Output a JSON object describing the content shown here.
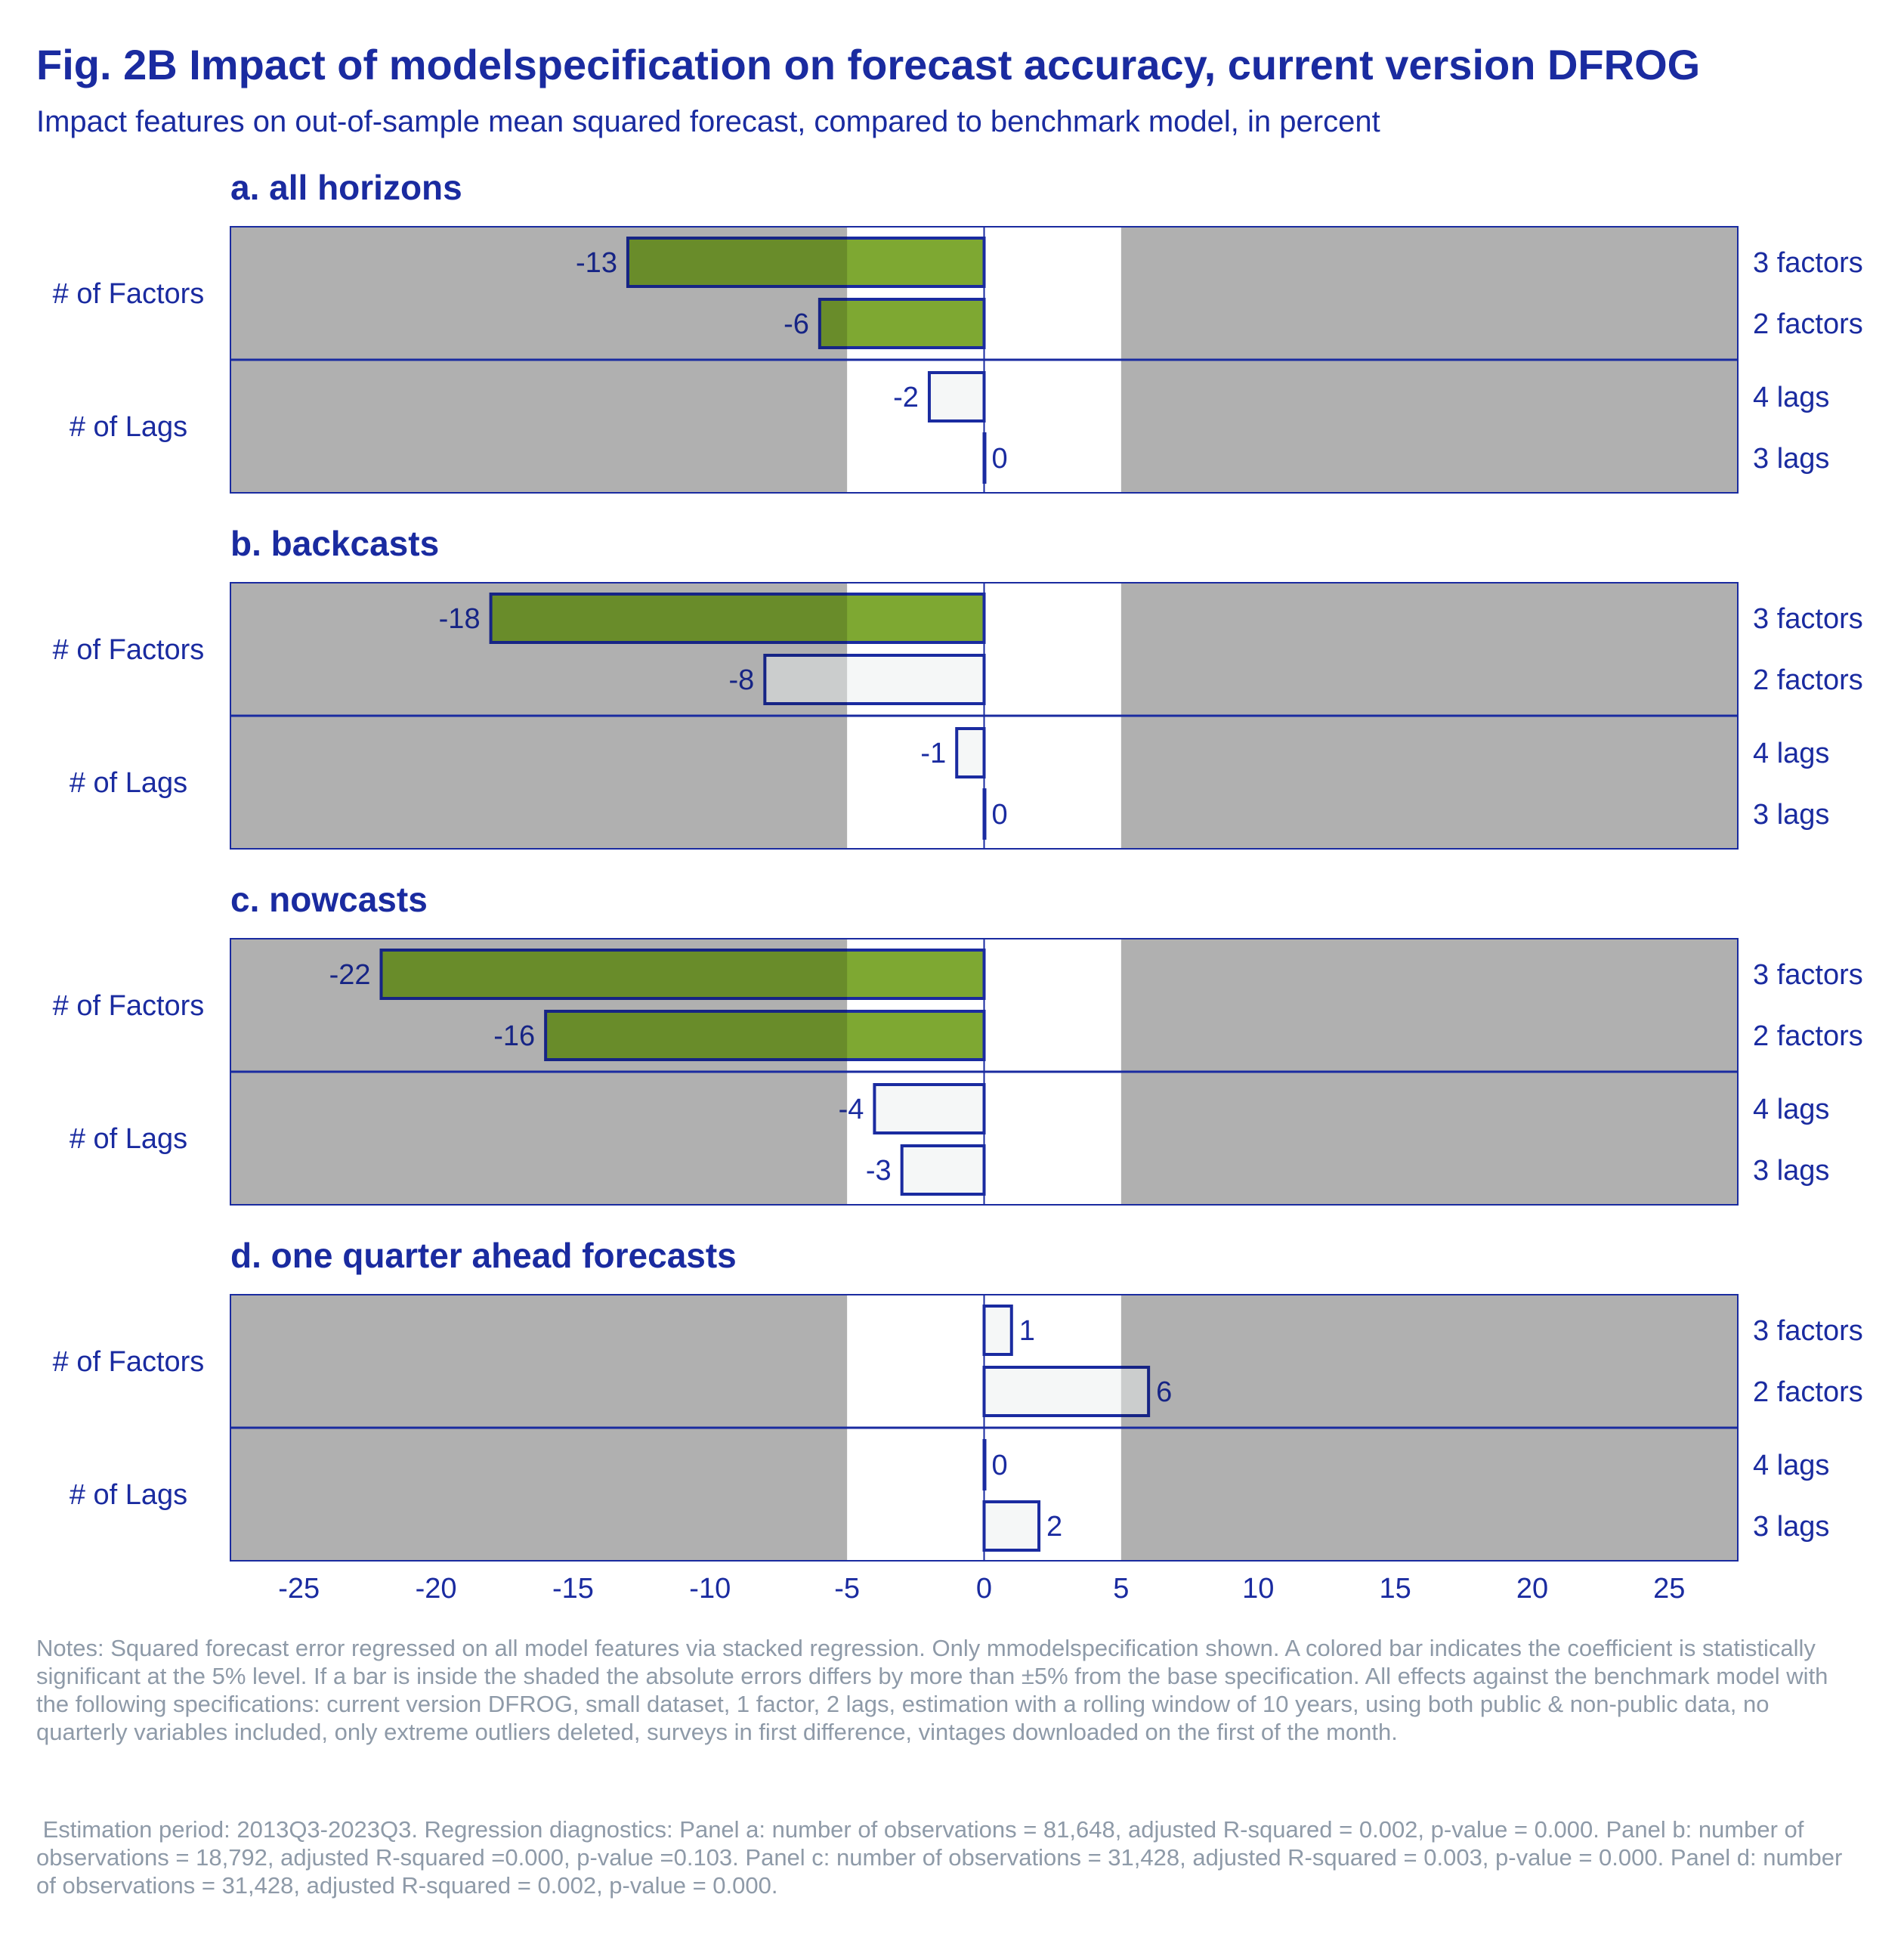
{
  "header": {
    "title": "Fig. 2B Impact of modelspecification on forecast accuracy, current version DFROG",
    "subtitle": "Impact features on out-of-sample mean squared forecast, compared to benchmark model, in percent"
  },
  "notes": {
    "paragraph1": "Notes: Squared forecast error regressed on all model features via stacked regression. Only mmodelspecification shown. A colored bar indicates the coefficient is statistically significant at the 5% level. If a bar is inside the shaded the absolute errors differs by more than ±5% from the base specification. All effects against the benchmark model with the following specifications: current version DFROG, small dataset, 1 factor, 2 lags, estimation with a rolling window of 10 years, using both public & non-public data, no quarterly variables included, only extreme outliers deleted, surveys in first difference, vintages downloaded on the first of the month.",
    "paragraph2": " Estimation period: 2013Q3-2023Q3. Regression diagnostics: Panel a: number of observations = 81,648, adjusted R-squared = 0.002, p-value = 0.000. Panel b: number of observations = 18,792, adjusted R-squared =0.000, p-value =0.103. Panel c: number of observations = 31,428, adjusted R-squared = 0.003, p-value = 0.000. Panel d: number of observations = 31,428, adjusted R-squared = 0.002, p-value = 0.000."
  },
  "chart_data": {
    "type": "bar",
    "orientation": "horizontal",
    "xlim": [
      -27.5,
      27.5
    ],
    "x_ticks": [
      -25,
      -20,
      -15,
      -10,
      -5,
      0,
      5,
      10,
      15,
      20,
      25
    ],
    "shaded_threshold": 5,
    "colors": {
      "text": "#1a2ba0",
      "significant_bar": "#7ea832",
      "insignificant_bar": "#f5f7f7",
      "shade": "#d4d4d4",
      "bar_outline": "#1a2ba0"
    },
    "groups": [
      {
        "label": "# of Factors",
        "categories": [
          "3 factors",
          "2 factors"
        ]
      },
      {
        "label": "# of Lags",
        "categories": [
          "4 lags",
          "3 lags"
        ]
      }
    ],
    "panels": [
      {
        "title": "a. all horizons",
        "values": [
          -13,
          -6,
          -2,
          0
        ],
        "significant": [
          true,
          true,
          false,
          false
        ]
      },
      {
        "title": "b. backcasts",
        "values": [
          -18,
          -8,
          -1,
          0
        ],
        "significant": [
          true,
          false,
          false,
          false
        ]
      },
      {
        "title": "c. nowcasts",
        "values": [
          -22,
          -16,
          -4,
          -3
        ],
        "significant": [
          true,
          true,
          false,
          false
        ]
      },
      {
        "title": "d. one quarter ahead forecasts",
        "values": [
          1,
          6,
          0,
          2
        ],
        "significant": [
          false,
          false,
          false,
          false
        ]
      }
    ]
  }
}
